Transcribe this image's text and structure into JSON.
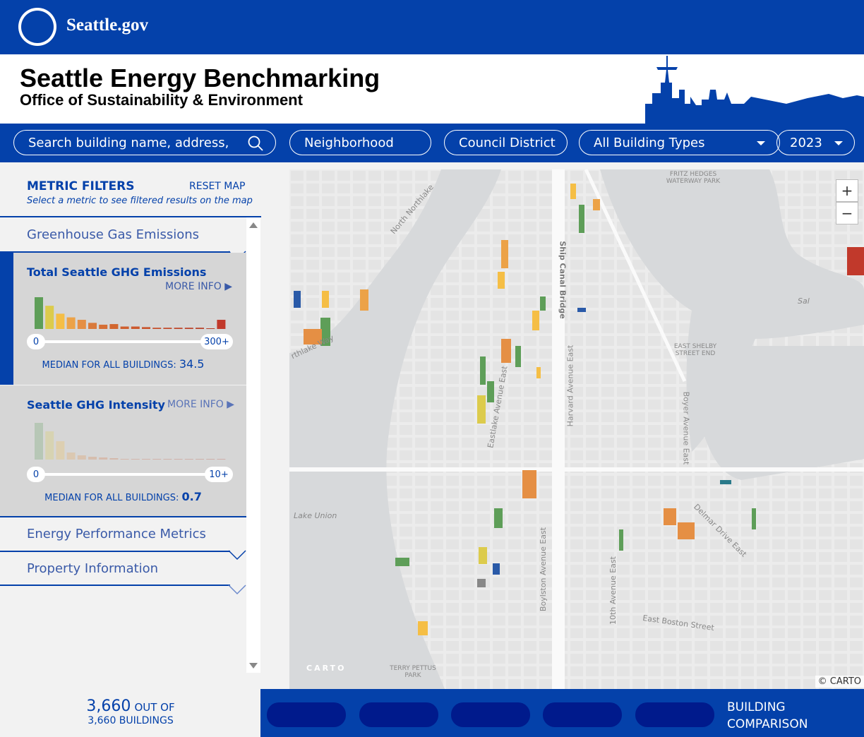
{
  "topbar": {
    "brand": "Seattle.gov"
  },
  "header": {
    "title": "Seattle Energy Benchmarking",
    "subtitle": "Office of Sustainability & Environment"
  },
  "toolbar": {
    "search_placeholder": "Search building name, address, or I",
    "neighborhood": "Neighborhood",
    "council_district": "Council District",
    "building_types": "All Building Types",
    "year": "2023"
  },
  "sidebar": {
    "title": "METRIC FILTERS",
    "reset": "RESET MAP",
    "subtitle": "Select a metric to see filtered results on the map",
    "sections": [
      "Greenhouse Gas Emissions",
      "Energy Performance Metrics",
      "Property Information"
    ],
    "metrics": [
      {
        "title": "Total Seattle GHG Emissions",
        "more": "MORE INFO ▶",
        "min": "0",
        "max": "300+",
        "median_label": "MEDIAN FOR ALL BUILDINGS:",
        "median": "34.5",
        "histogram": [
          52,
          38,
          25,
          19,
          15,
          10,
          7,
          8,
          4,
          4,
          3,
          2,
          2,
          2,
          2,
          2,
          1,
          15
        ],
        "colors": [
          "#5e9e58",
          "#dccb4c",
          "#f5be45",
          "#eca247",
          "#e58f44",
          "#d97a3c",
          "#d66f35",
          "#d2662f",
          "#cf5f2e",
          "#cc592d",
          "#c9542c",
          "#c54f2b",
          "#c24a2a",
          "#bf4629",
          "#bc4329",
          "#b94128",
          "#b73f28",
          "#c1392b"
        ]
      },
      {
        "title": "Seattle GHG Intensity",
        "more": "MORE INFO ▶",
        "min": "0",
        "max": "10+",
        "median_label": "MEDIAN FOR ALL BUILDINGS:",
        "median": "0.7",
        "histogram": [
          52,
          40,
          26,
          10,
          6,
          4,
          3,
          2,
          1,
          1,
          1,
          0,
          0,
          0,
          0,
          0,
          0,
          1
        ]
      }
    ],
    "count": "3,660",
    "count_suffix": "OUT OF",
    "total": "3,660 BUILDINGS"
  },
  "map": {
    "zoom_in": "+",
    "zoom_out": "−",
    "attribution": "© CARTO",
    "carto_logo": "CARTO",
    "labels": [
      "North Northlake",
      "rthlake Way",
      "Lake Union",
      "Ship Canal Bridge",
      "Harvard Avenue East",
      "Eastlake Avenue East",
      "Boylston Avenue East",
      "10th Avenue East",
      "Boyer Avenue East",
      "Delmar Drive East",
      "East Boston Street",
      "FRITZ HEDGES WATERWAY PARK",
      "EAST SHELBY STREET END",
      "TERRY PETTUS PARK",
      "Sal"
    ]
  },
  "bottom": {
    "building_comparison": "BUILDING COMPARISON"
  }
}
